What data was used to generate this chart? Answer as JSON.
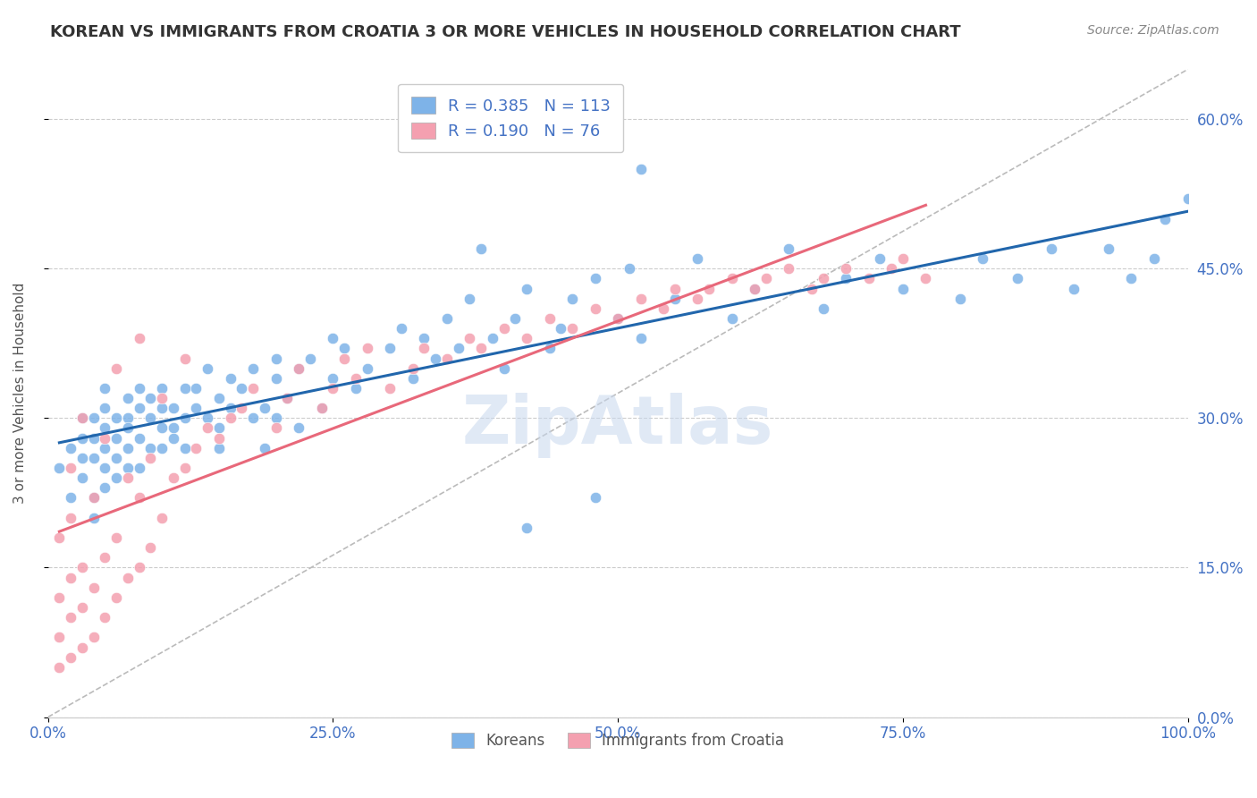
{
  "title": "KOREAN VS IMMIGRANTS FROM CROATIA 3 OR MORE VEHICLES IN HOUSEHOLD CORRELATION CHART",
  "source": "Source: ZipAtlas.com",
  "ylabel": "3 or more Vehicles in Household",
  "xlim": [
    0,
    1.0
  ],
  "ylim": [
    0,
    0.65
  ],
  "yticks": [
    0.0,
    0.15,
    0.3,
    0.45,
    0.6
  ],
  "ytick_labels": [
    "0.0%",
    "15.0%",
    "30.0%",
    "45.0%",
    "60.0%"
  ],
  "xticks": [
    0.0,
    0.25,
    0.5,
    0.75,
    1.0
  ],
  "xtick_labels": [
    "0.0%",
    "25.0%",
    "50.0%",
    "75.0%",
    "100.0%"
  ],
  "korean_R": 0.385,
  "korean_N": 113,
  "croatia_R": 0.19,
  "croatia_N": 76,
  "blue_color": "#7EB3E8",
  "pink_color": "#F4A0B0",
  "trendline_blue": "#2166AC",
  "trendline_pink": "#E8687A",
  "diagonal_color": "#BBBBBB",
  "watermark": "ZipAtlas",
  "legend_label_1": "Koreans",
  "legend_label_2": "Immigrants from Croatia",
  "korean_x": [
    0.01,
    0.02,
    0.02,
    0.03,
    0.03,
    0.03,
    0.03,
    0.04,
    0.04,
    0.04,
    0.04,
    0.04,
    0.05,
    0.05,
    0.05,
    0.05,
    0.05,
    0.05,
    0.06,
    0.06,
    0.06,
    0.06,
    0.07,
    0.07,
    0.07,
    0.07,
    0.07,
    0.08,
    0.08,
    0.08,
    0.08,
    0.09,
    0.09,
    0.09,
    0.1,
    0.1,
    0.1,
    0.1,
    0.11,
    0.11,
    0.11,
    0.12,
    0.12,
    0.12,
    0.13,
    0.13,
    0.14,
    0.14,
    0.15,
    0.15,
    0.15,
    0.16,
    0.16,
    0.17,
    0.18,
    0.18,
    0.19,
    0.19,
    0.2,
    0.2,
    0.2,
    0.21,
    0.22,
    0.22,
    0.23,
    0.24,
    0.25,
    0.25,
    0.26,
    0.27,
    0.28,
    0.3,
    0.31,
    0.32,
    0.33,
    0.34,
    0.35,
    0.36,
    0.37,
    0.39,
    0.4,
    0.41,
    0.42,
    0.44,
    0.45,
    0.46,
    0.48,
    0.5,
    0.51,
    0.52,
    0.55,
    0.57,
    0.6,
    0.62,
    0.65,
    0.68,
    0.7,
    0.73,
    0.75,
    0.8,
    0.82,
    0.85,
    0.88,
    0.9,
    0.93,
    0.95,
    0.97,
    0.98,
    1.0,
    0.38,
    0.42,
    0.48,
    0.52
  ],
  "korean_y": [
    0.25,
    0.27,
    0.22,
    0.26,
    0.28,
    0.3,
    0.24,
    0.26,
    0.28,
    0.22,
    0.2,
    0.3,
    0.27,
    0.25,
    0.29,
    0.31,
    0.23,
    0.33,
    0.28,
    0.26,
    0.3,
    0.24,
    0.27,
    0.3,
    0.25,
    0.29,
    0.32,
    0.28,
    0.31,
    0.25,
    0.33,
    0.27,
    0.3,
    0.32,
    0.27,
    0.31,
    0.29,
    0.33,
    0.29,
    0.31,
    0.28,
    0.3,
    0.33,
    0.27,
    0.31,
    0.33,
    0.3,
    0.35,
    0.27,
    0.32,
    0.29,
    0.34,
    0.31,
    0.33,
    0.3,
    0.35,
    0.31,
    0.27,
    0.34,
    0.3,
    0.36,
    0.32,
    0.35,
    0.29,
    0.36,
    0.31,
    0.38,
    0.34,
    0.37,
    0.33,
    0.35,
    0.37,
    0.39,
    0.34,
    0.38,
    0.36,
    0.4,
    0.37,
    0.42,
    0.38,
    0.35,
    0.4,
    0.43,
    0.37,
    0.39,
    0.42,
    0.44,
    0.4,
    0.45,
    0.38,
    0.42,
    0.46,
    0.4,
    0.43,
    0.47,
    0.41,
    0.44,
    0.46,
    0.43,
    0.42,
    0.46,
    0.44,
    0.47,
    0.43,
    0.47,
    0.44,
    0.46,
    0.5,
    0.52,
    0.47,
    0.19,
    0.22,
    0.55
  ],
  "croatia_x": [
    0.01,
    0.01,
    0.01,
    0.01,
    0.02,
    0.02,
    0.02,
    0.02,
    0.02,
    0.03,
    0.03,
    0.03,
    0.03,
    0.04,
    0.04,
    0.04,
    0.05,
    0.05,
    0.05,
    0.06,
    0.06,
    0.06,
    0.07,
    0.07,
    0.08,
    0.08,
    0.08,
    0.09,
    0.09,
    0.1,
    0.1,
    0.11,
    0.12,
    0.12,
    0.13,
    0.14,
    0.15,
    0.16,
    0.17,
    0.18,
    0.2,
    0.21,
    0.22,
    0.24,
    0.25,
    0.26,
    0.27,
    0.28,
    0.3,
    0.32,
    0.33,
    0.35,
    0.37,
    0.38,
    0.4,
    0.42,
    0.44,
    0.46,
    0.48,
    0.5,
    0.52,
    0.54,
    0.55,
    0.57,
    0.58,
    0.6,
    0.62,
    0.63,
    0.65,
    0.67,
    0.68,
    0.7,
    0.72,
    0.74,
    0.75,
    0.77
  ],
  "croatia_y": [
    0.05,
    0.08,
    0.12,
    0.18,
    0.06,
    0.1,
    0.14,
    0.2,
    0.25,
    0.07,
    0.11,
    0.15,
    0.3,
    0.08,
    0.13,
    0.22,
    0.1,
    0.16,
    0.28,
    0.12,
    0.18,
    0.35,
    0.14,
    0.24,
    0.15,
    0.22,
    0.38,
    0.17,
    0.26,
    0.2,
    0.32,
    0.24,
    0.25,
    0.36,
    0.27,
    0.29,
    0.28,
    0.3,
    0.31,
    0.33,
    0.29,
    0.32,
    0.35,
    0.31,
    0.33,
    0.36,
    0.34,
    0.37,
    0.33,
    0.35,
    0.37,
    0.36,
    0.38,
    0.37,
    0.39,
    0.38,
    0.4,
    0.39,
    0.41,
    0.4,
    0.42,
    0.41,
    0.43,
    0.42,
    0.43,
    0.44,
    0.43,
    0.44,
    0.45,
    0.43,
    0.44,
    0.45,
    0.44,
    0.45,
    0.46,
    0.44
  ]
}
